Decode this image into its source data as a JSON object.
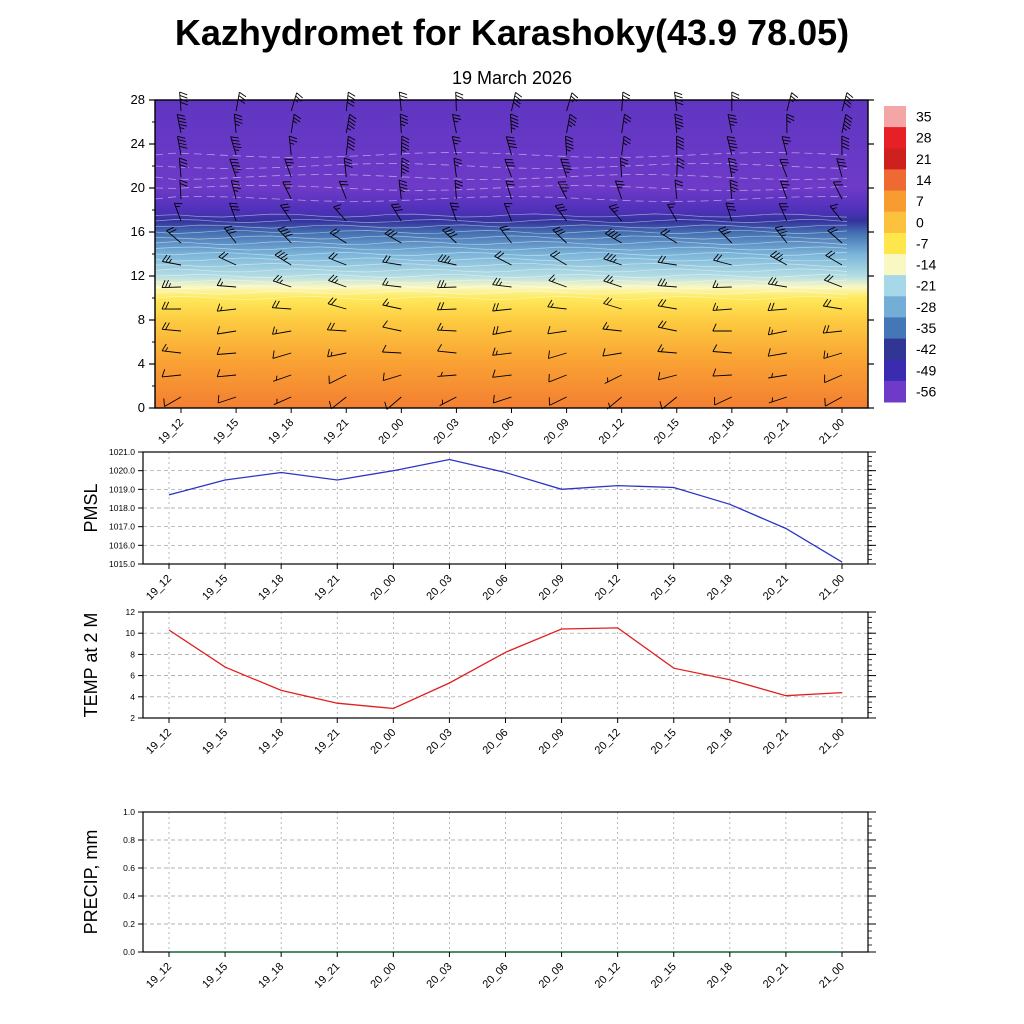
{
  "title": "Kazhydromet for Karashoky(43.9 78.05)",
  "subtitle": "19 March 2026",
  "chart_data": {
    "categories": [
      "19_12",
      "19_15",
      "19_18",
      "19_21",
      "20_00",
      "20_03",
      "20_06",
      "20_09",
      "20_12",
      "20_15",
      "20_18",
      "20_21",
      "21_00"
    ],
    "panels": [
      {
        "type": "heatmap",
        "name": "vertical-profile",
        "ylim": [
          0,
          28
        ],
        "yticks": [
          0,
          4,
          8,
          12,
          16,
          20,
          24,
          28
        ],
        "colorbar": {
          "values": [
            35,
            28,
            21,
            14,
            7,
            0,
            -7,
            -14,
            -21,
            -28,
            -35,
            -42,
            -49,
            -56
          ],
          "colors": [
            "#f4a6a6",
            "#e62025",
            "#cf2020",
            "#ef6a32",
            "#f89b31",
            "#fcc13d",
            "#ffe64a",
            "#faf8c2",
            "#a7d8ea",
            "#72aed6",
            "#4576b5",
            "#313695",
            "#3a2bb0",
            "#6e3ac8"
          ]
        },
        "profile": {
          "heights": [
            0,
            4,
            8,
            10,
            11,
            12,
            14,
            16,
            17,
            18,
            20,
            24,
            28
          ],
          "temps": [
            11,
            6,
            -2,
            -8,
            -14,
            -20,
            -27,
            -36,
            -44,
            -52,
            -56,
            -55,
            -54
          ]
        },
        "wind": {
          "heights": [
            1,
            3,
            5,
            7,
            9,
            11,
            13,
            15,
            17,
            19,
            21,
            23,
            25,
            27
          ],
          "dir": [
            240,
            255,
            265,
            270,
            275,
            280,
            290,
            310,
            330,
            345,
            350,
            355,
            0,
            5
          ],
          "speed": [
            8,
            10,
            12,
            14,
            18,
            22,
            26,
            30,
            24,
            28,
            34,
            38,
            36,
            32
          ]
        },
        "contour_heights": [
          10,
          10.5,
          11,
          11.5,
          12,
          12.5,
          13,
          13.5,
          14,
          14.5,
          15,
          15.5,
          16,
          16.5,
          17,
          17.5
        ],
        "upper_contours": [
          19,
          20,
          21,
          22,
          23
        ]
      },
      {
        "type": "line",
        "name": "pmsl",
        "ylabel": "PMSL",
        "color": "#2a35c4",
        "ylim": [
          1015,
          1021
        ],
        "yticks": [
          1015,
          1016,
          1017,
          1018,
          1019,
          1020,
          1021
        ],
        "ytick_labels": [
          "1015.0",
          "1016.0",
          "1017.0",
          "1018.0",
          "1019.0",
          "1020.0",
          "1021.0"
        ],
        "values": [
          1018.7,
          1019.5,
          1019.9,
          1019.5,
          1020.0,
          1020.6,
          1019.9,
          1019.0,
          1019.2,
          1019.1,
          1018.2,
          1016.9,
          1015.1
        ]
      },
      {
        "type": "line",
        "name": "temp2m",
        "ylabel": "TEMP at 2 M",
        "color": "#e02020",
        "ylim": [
          2,
          12
        ],
        "yticks": [
          2,
          4,
          6,
          8,
          10,
          12
        ],
        "ytick_labels": [
          "2",
          "4",
          "6",
          "8",
          "10",
          "12"
        ],
        "values": [
          10.3,
          6.8,
          4.6,
          3.4,
          2.9,
          5.3,
          8.2,
          10.4,
          10.5,
          6.7,
          5.6,
          4.1,
          4.4
        ]
      },
      {
        "type": "line",
        "name": "precip",
        "ylabel": "PRECIP, mm",
        "color": "#006633",
        "ylim": [
          0,
          1
        ],
        "yticks": [
          0,
          0.2,
          0.4,
          0.6,
          0.8,
          1.0
        ],
        "ytick_labels": [
          "0.0",
          "0.2",
          "0.4",
          "0.6",
          "0.8",
          "1.0"
        ],
        "values": [
          0,
          0,
          0,
          0,
          0,
          0,
          0,
          0,
          0,
          0,
          0,
          0,
          0
        ]
      }
    ]
  }
}
